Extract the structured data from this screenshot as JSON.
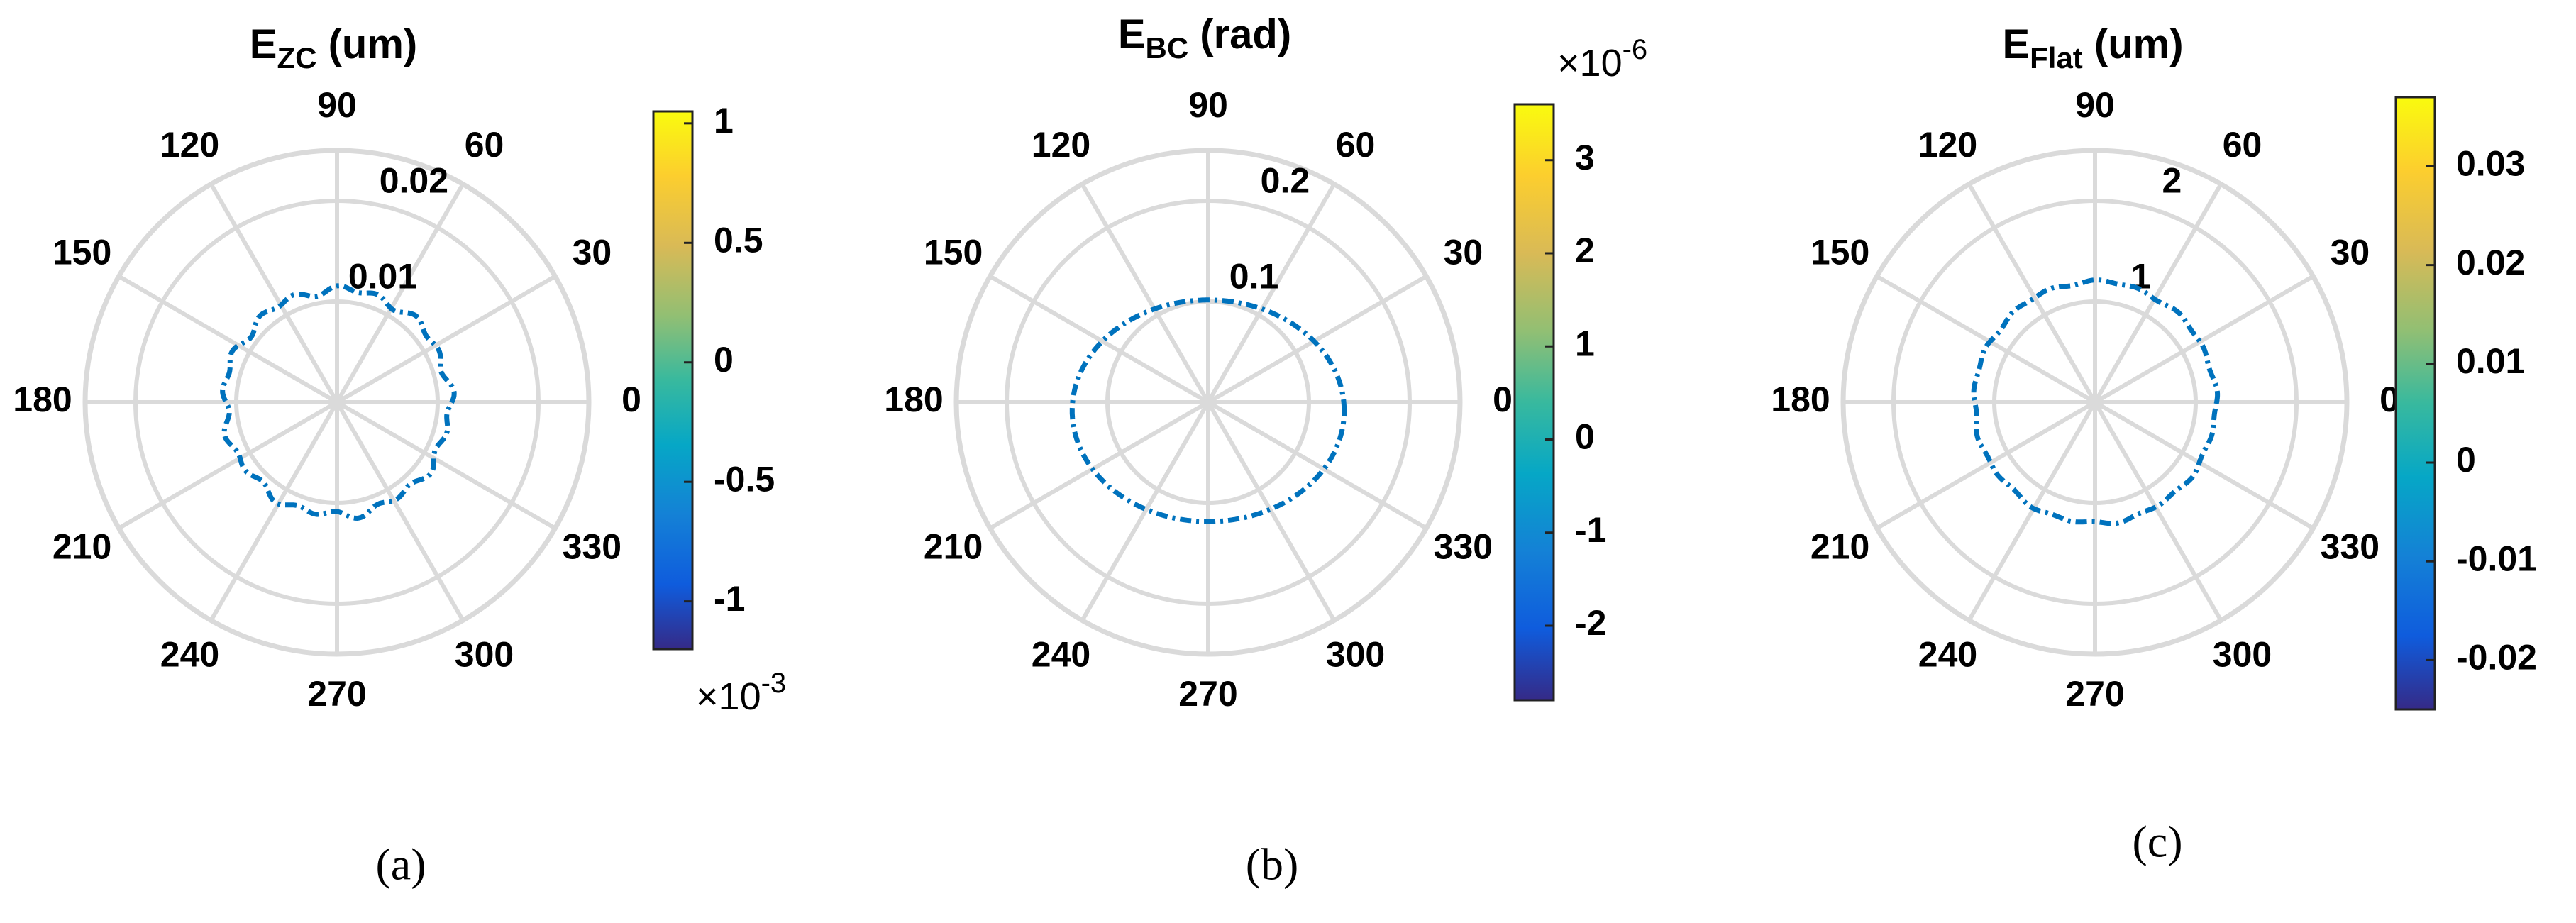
{
  "chart_data": [
    {
      "type": "polar-line",
      "caption": "(a)",
      "title_main": "E",
      "title_sub": "ZC",
      "title_unit": " (um)",
      "angle_labels": [
        "0",
        "30",
        "60",
        "90",
        "120",
        "150",
        "180",
        "210",
        "240",
        "270",
        "300",
        "330"
      ],
      "r_ticks": [
        0.01,
        0.02
      ],
      "r_tick_labels": [
        "0.01",
        "0.02"
      ],
      "rlim": [
        0,
        0.025
      ],
      "series": [
        {
          "radius_mean": 0.0112,
          "ripple": 0.0005,
          "color": "#0072BD",
          "style": "dash-dot"
        }
      ],
      "colorbar": {
        "ticks": [
          "1",
          "0.5",
          "0",
          "-0.5",
          "-1"
        ],
        "tick_values": [
          1,
          0.5,
          0,
          -0.5,
          -1
        ],
        "range": [
          -1.2,
          1.05
        ],
        "exponent_label": "×10",
        "exponent_power": "-3",
        "exponent_position": "bottom"
      }
    },
    {
      "type": "polar-line",
      "caption": "(b)",
      "title_main": "E",
      "title_sub": "BC",
      "title_unit": " (rad)",
      "angle_labels": [
        "0",
        "30",
        "60",
        "90",
        "120",
        "150",
        "180",
        "210",
        "240",
        "270",
        "300",
        "330"
      ],
      "r_ticks": [
        0.1,
        0.2
      ],
      "r_tick_labels": [
        "0.1",
        "0.2"
      ],
      "rlim": [
        0,
        0.25
      ],
      "series": [
        {
          "radius_x": 0.135,
          "radius_y": 0.11,
          "color": "#0072BD",
          "style": "dash-dot"
        }
      ],
      "colorbar": {
        "ticks": [
          "3",
          "2",
          "1",
          "0",
          "-1",
          "-2"
        ],
        "tick_values": [
          3,
          2,
          1,
          0,
          -1,
          -2
        ],
        "range": [
          -2.8,
          3.6
        ],
        "exponent_label": "×10",
        "exponent_power": "-6",
        "exponent_position": "top"
      }
    },
    {
      "type": "polar-line",
      "caption": "(c)",
      "title_main": "E",
      "title_sub": "Flat",
      "title_unit": " (um)",
      "angle_labels": [
        "0",
        "30",
        "60",
        "90",
        "120",
        "150",
        "180",
        "210",
        "240",
        "270",
        "300",
        "330"
      ],
      "r_ticks": [
        1,
        2
      ],
      "r_tick_labels": [
        "1",
        "2"
      ],
      "rlim": [
        0,
        2.5
      ],
      "series": [
        {
          "radius_mean": 1.2,
          "ripple": 0.02,
          "color": "#0072BD",
          "style": "dash-dot"
        }
      ],
      "colorbar": {
        "ticks": [
          "0.03",
          "0.02",
          "0.01",
          "0",
          "-0.01",
          "-0.02"
        ],
        "tick_values": [
          0.03,
          0.02,
          0.01,
          0,
          -0.01,
          -0.02
        ],
        "range": [
          -0.025,
          0.037
        ],
        "exponent_label": "",
        "exponent_power": "",
        "exponent_position": "none"
      }
    }
  ]
}
